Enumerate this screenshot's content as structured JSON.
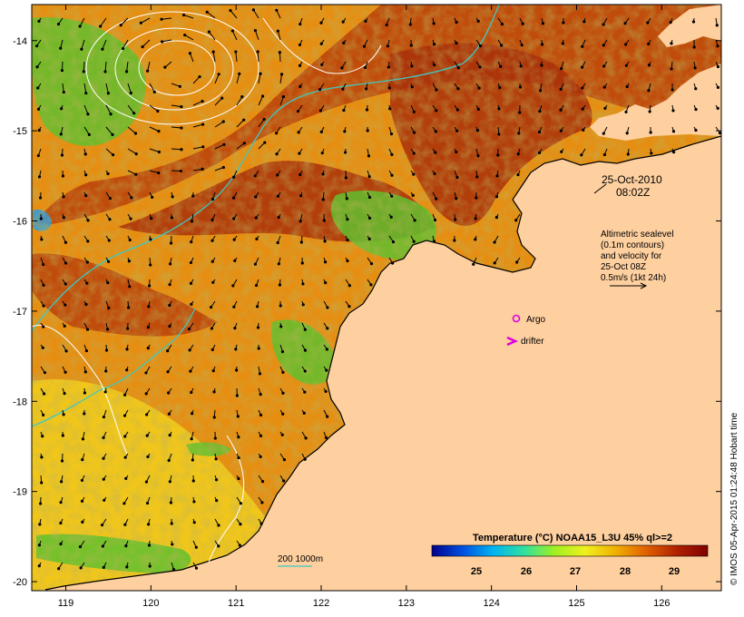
{
  "map": {
    "lon_ticks": [
      "119",
      "120",
      "121",
      "122",
      "123",
      "124",
      "125",
      "126"
    ],
    "lat_ticks": [
      "-14",
      "-15",
      "-16",
      "-17",
      "-18",
      "-19",
      "-20"
    ],
    "lon_range": [
      118.6,
      126.7
    ],
    "lat_range": [
      -20.1,
      -13.6
    ],
    "colors": {
      "land": "#fecf9f",
      "warm_sst": "#b9410b",
      "mid_sst": "#e68e12",
      "cool_sst": "#f2d01d",
      "green_sst": "#5fbf2e",
      "isobath": "#40c8c0",
      "contour": "#ffffff",
      "argo": "#e000e0",
      "drifter": "#e000e0"
    }
  },
  "annotations": {
    "date": "25-Oct-2010",
    "time": "08:02Z",
    "altimetry_lines": [
      "Altimetric sealevel",
      "(0.1m contours)",
      "and velocity for",
      "25-Oct 08Z",
      "0.5m/s (1kt 24h)"
    ],
    "argo_label": "Argo",
    "drifter_label": "drifter",
    "isobath_label": "200  1000m"
  },
  "colorbar": {
    "title": "Temperature (°C) NOAA15_L3U 45% ql>=2",
    "ticks": [
      "25",
      "26",
      "27",
      "28",
      "29"
    ],
    "stops": [
      "#00008c",
      "#0050e0",
      "#00b4f0",
      "#30e0a0",
      "#a0f020",
      "#f0f020",
      "#f0b000",
      "#e06000",
      "#b02000",
      "#800000"
    ]
  },
  "credit": "© IMOS 05-Apr-2015 01:24:48 Hobart time"
}
